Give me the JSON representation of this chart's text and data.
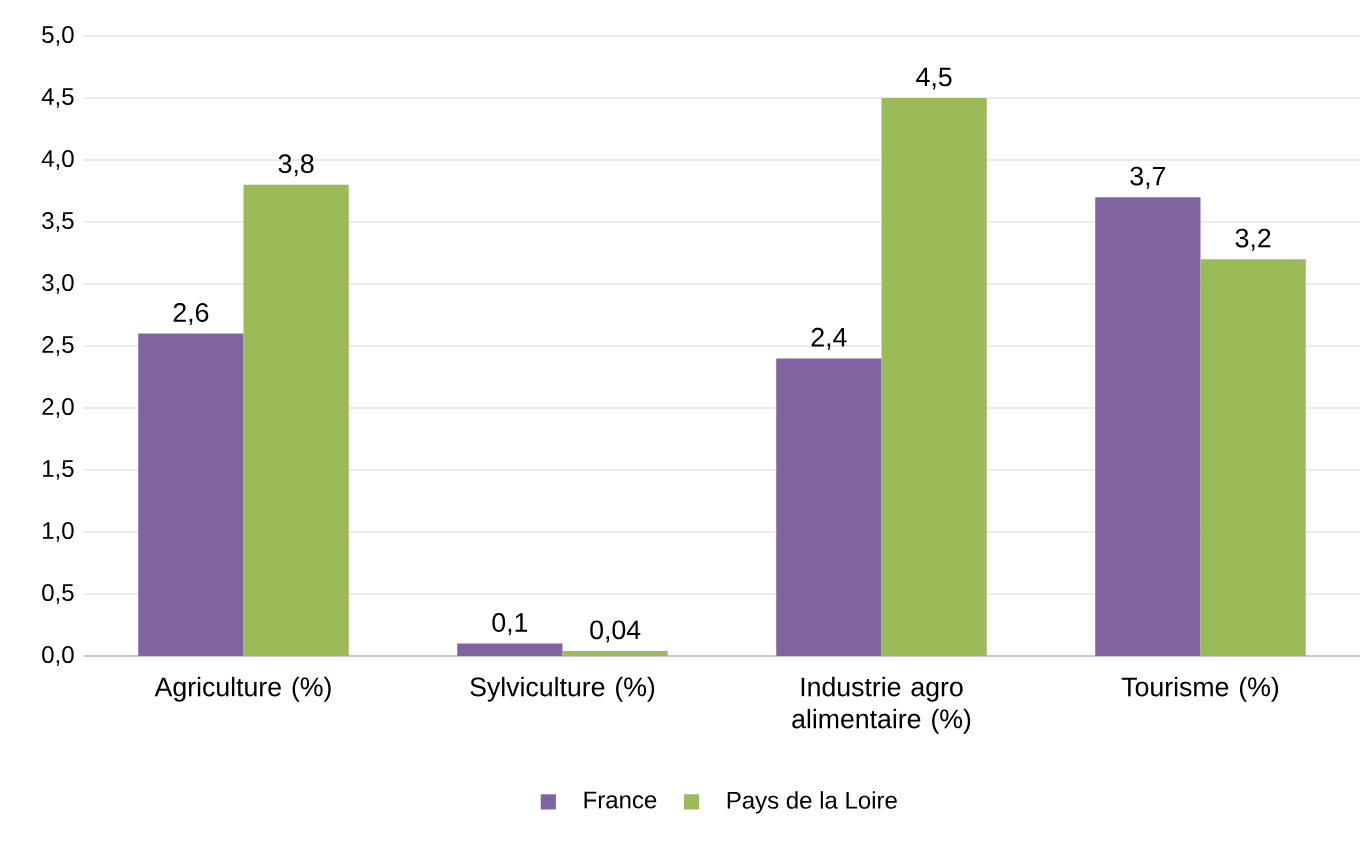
{
  "chart_data": {
    "type": "bar",
    "categories": [
      "Agriculture (%)",
      "Sylviculture (%)",
      "Industrie agro alimentaire (%)",
      "Tourisme (%)"
    ],
    "series": [
      {
        "name": "France",
        "color": "#8064a2",
        "values": [
          2.6,
          0.1,
          2.4,
          3.7
        ],
        "value_labels": [
          "2,6",
          "0,1",
          "2,4",
          "3,7"
        ]
      },
      {
        "name": "Pays de la Loire",
        "color": "#9bbb59",
        "values": [
          3.8,
          0.04,
          4.5,
          3.2
        ],
        "value_labels": [
          "3,8",
          "0,04",
          "4,5",
          "3,2"
        ]
      }
    ],
    "ylim": [
      0,
      5
    ],
    "yticks": [
      {
        "value": 0,
        "label": "0,0"
      },
      {
        "value": 0.5,
        "label": "0,5"
      },
      {
        "value": 1,
        "label": "1,0"
      },
      {
        "value": 1.5,
        "label": "1,5"
      },
      {
        "value": 2,
        "label": "2,0"
      },
      {
        "value": 2.5,
        "label": "2,5"
      },
      {
        "value": 3,
        "label": "3,0"
      },
      {
        "value": 3.5,
        "label": "3,5"
      },
      {
        "value": 4,
        "label": "4,0"
      },
      {
        "value": 4.5,
        "label": "4,5"
      },
      {
        "value": 5,
        "label": "5,0"
      }
    ],
    "grid": "y",
    "legend": "bottom"
  }
}
